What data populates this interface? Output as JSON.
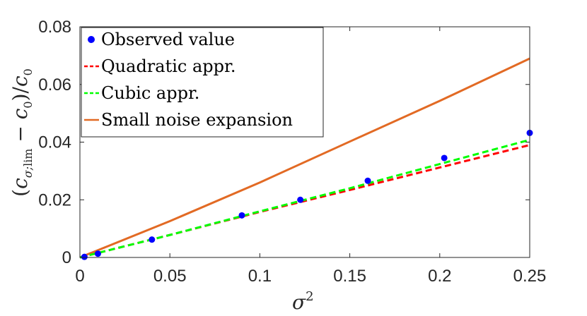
{
  "chart_data": {
    "type": "line",
    "xlabel": "σ²",
    "ylabel": "(c_{σ;lim} − c_0)/c_0",
    "xlim": [
      0,
      0.25
    ],
    "ylim": [
      0,
      0.08
    ],
    "xticks": [
      "0",
      "0.05",
      "0.1",
      "0.15",
      "0.2",
      "0.25"
    ],
    "yticks": [
      "0",
      "0.02",
      "0.04",
      "0.06",
      "0.08"
    ],
    "legend_position": "top-left",
    "series": [
      {
        "name": "Observed value",
        "kind": "markers",
        "color": "#0000ff",
        "x": [
          0.0025,
          0.01,
          0.04,
          0.09,
          0.1225,
          0.16,
          0.2025,
          0.25
        ],
        "y": [
          0.0002,
          0.0013,
          0.0062,
          0.0146,
          0.02,
          0.0266,
          0.0345,
          0.0432
        ]
      },
      {
        "name": "Quadratic appr.",
        "kind": "dashed",
        "color": "#ff0000",
        "x": [
          0.0,
          0.05,
          0.1,
          0.15,
          0.2,
          0.25
        ],
        "y": [
          0.0,
          0.0078,
          0.0158,
          0.0234,
          0.0312,
          0.039
        ]
      },
      {
        "name": "Cubic appr.",
        "kind": "dashed",
        "color": "#00ff00",
        "x": [
          0.0,
          0.05,
          0.1,
          0.15,
          0.2,
          0.25
        ],
        "y": [
          0.0,
          0.0078,
          0.016,
          0.024,
          0.0324,
          0.0408
        ]
      },
      {
        "name": "Small noise expansion",
        "kind": "solid",
        "color": "#e26a24",
        "x": [
          0.0,
          0.05,
          0.1,
          0.15,
          0.2,
          0.25
        ],
        "y": [
          0.0,
          0.0126,
          0.026,
          0.0402,
          0.0543,
          0.069
        ]
      }
    ]
  }
}
